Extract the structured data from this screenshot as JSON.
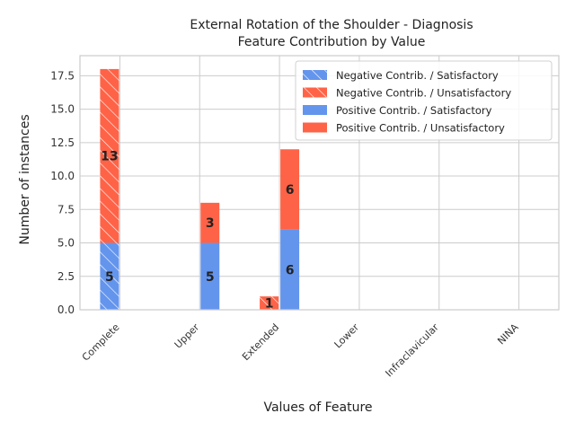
{
  "chart_data": {
    "type": "bar",
    "title": "External Rotation of the Shoulder - Diagnosis",
    "subtitle": "Feature Contribution by Value",
    "xlabel": "Values of Feature",
    "ylabel": "Number of instances",
    "ylim": [
      0,
      19
    ],
    "yticks": [
      0.0,
      2.5,
      5.0,
      7.5,
      10.0,
      12.5,
      15.0,
      17.5
    ],
    "ytick_labels": [
      "0.0",
      "2.5",
      "5.0",
      "7.5",
      "10.0",
      "12.5",
      "15.0",
      "17.5"
    ],
    "categories": [
      "Complete",
      "Upper",
      "Extended",
      "Lower",
      "Infraclavicular",
      "NINA"
    ],
    "grid": true,
    "legend_position": "top-right",
    "colors": {
      "satisfactory": "#6495ED",
      "unsatisfactory": "#FF6347"
    },
    "groups": [
      {
        "name": "Negative Contrib.",
        "hatched": true,
        "series": [
          {
            "name": "Negative Contrib. / Satisfactory",
            "outcome": "satisfactory",
            "values": [
              5,
              0,
              0,
              0,
              0,
              0
            ]
          },
          {
            "name": "Negative Contrib. / Unsatisfactory",
            "outcome": "unsatisfactory",
            "values": [
              13,
              0,
              1,
              0,
              0,
              0
            ]
          }
        ]
      },
      {
        "name": "Positive Contrib.",
        "hatched": false,
        "series": [
          {
            "name": "Positive Contrib. / Satisfactory",
            "outcome": "satisfactory",
            "values": [
              0,
              5,
              6,
              0,
              0,
              0
            ]
          },
          {
            "name": "Positive Contrib. / Unsatisfactory",
            "outcome": "unsatisfactory",
            "values": [
              0,
              3,
              6,
              0,
              0,
              0
            ]
          }
        ]
      }
    ],
    "legend": [
      "Negative Contrib. / Satisfactory",
      "Negative Contrib. / Unsatisfactory",
      "Positive Contrib. / Satisfactory",
      "Positive Contrib. / Unsatisfactory"
    ]
  }
}
